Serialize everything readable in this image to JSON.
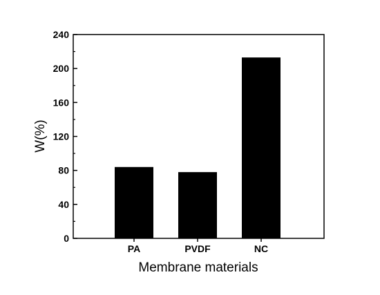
{
  "chart_data": {
    "type": "bar",
    "categories": [
      "PA",
      "PVDF",
      "NC"
    ],
    "values": [
      84,
      78,
      213
    ],
    "xlabel": "Membrane materials",
    "ylabel": "W(%)",
    "ylim": [
      0,
      240
    ],
    "yticks": [
      0,
      40,
      80,
      120,
      160,
      200,
      240
    ],
    "grid": false,
    "legend": "none",
    "bar_color": "#000000"
  }
}
